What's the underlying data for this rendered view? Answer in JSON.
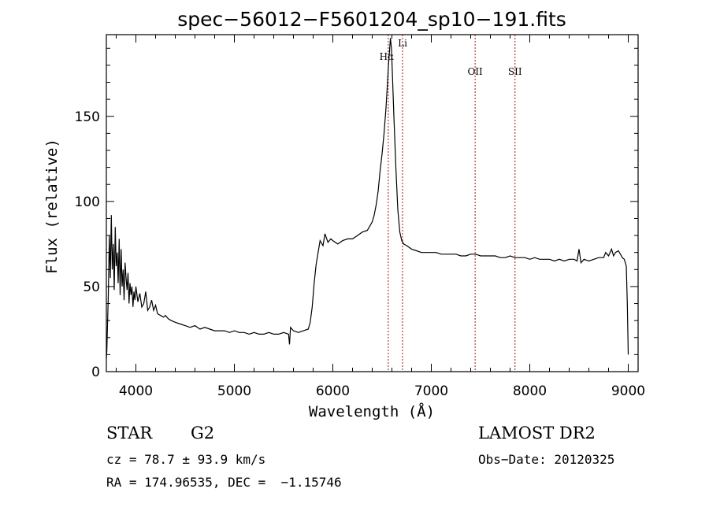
{
  "chart_data": {
    "type": "line",
    "title": "spec−56012−F5601204_sp10−191.fits",
    "xlabel": "Wavelength (Å)",
    "ylabel": "Flux (relative)",
    "xlim": [
      3700,
      9100
    ],
    "ylim": [
      0,
      198
    ],
    "x_ticks": [
      4000,
      5000,
      6000,
      7000,
      8000,
      9000
    ],
    "y_ticks": [
      0,
      50,
      100,
      150
    ],
    "grid": false,
    "series": [
      {
        "x": [
          3700,
          3705,
          3720,
          3730,
          3740,
          3750,
          3760,
          3770,
          3780,
          3790,
          3800,
          3810,
          3820,
          3830,
          3840,
          3850,
          3860,
          3870,
          3880,
          3890,
          3900,
          3910,
          3920,
          3930,
          3940,
          3950,
          3960,
          3970,
          3980,
          3990,
          4000,
          4020,
          4040,
          4060,
          4080,
          4100,
          4120,
          4140,
          4160,
          4180,
          4200,
          4220,
          4250,
          4280,
          4300,
          4330,
          4360,
          4400,
          4450,
          4500,
          4550,
          4600,
          4650,
          4700,
          4750,
          4800,
          4850,
          4900,
          4950,
          5000,
          5050,
          5100,
          5150,
          5200,
          5250,
          5300,
          5350,
          5400,
          5450,
          5500,
          5550,
          5560,
          5570,
          5600,
          5650,
          5700,
          5750,
          5770,
          5790,
          5810,
          5830,
          5850,
          5870,
          5900,
          5920,
          5950,
          5980,
          6000,
          6050,
          6100,
          6150,
          6200,
          6250,
          6300,
          6350,
          6400,
          6420,
          6440,
          6460,
          6480,
          6500,
          6520,
          6540,
          6555,
          6565,
          6575,
          6585,
          6595,
          6605,
          6620,
          6640,
          6660,
          6680,
          6700,
          6720,
          6750,
          6800,
          6850,
          6900,
          6950,
          7000,
          7050,
          7100,
          7150,
          7200,
          7250,
          7300,
          7350,
          7400,
          7450,
          7500,
          7550,
          7600,
          7650,
          7700,
          7750,
          7800,
          7850,
          7900,
          7950,
          8000,
          8050,
          8100,
          8150,
          8200,
          8250,
          8300,
          8350,
          8400,
          8450,
          8480,
          8500,
          8520,
          8550,
          8600,
          8650,
          8700,
          8750,
          8770,
          8800,
          8830,
          8850,
          8870,
          8900,
          8920,
          8940,
          8960,
          8980,
          8990,
          9000
        ],
        "y": [
          8,
          12,
          45,
          80,
          55,
          92,
          60,
          75,
          48,
          85,
          62,
          70,
          52,
          78,
          45,
          72,
          50,
          60,
          42,
          64,
          55,
          48,
          58,
          40,
          52,
          45,
          50,
          38,
          47,
          42,
          50,
          41,
          46,
          38,
          40,
          47,
          36,
          38,
          42,
          36,
          39,
          34,
          33,
          32,
          33,
          31,
          30,
          29,
          28,
          27,
          26,
          27,
          25,
          26,
          25,
          24,
          24,
          24,
          23,
          24,
          23,
          23,
          22,
          23,
          22,
          22,
          23,
          22,
          22,
          23,
          22,
          16,
          26,
          24,
          23,
          24,
          25,
          29,
          38,
          52,
          63,
          70,
          77,
          74,
          81,
          76,
          78,
          77,
          75,
          77,
          78,
          78,
          80,
          82,
          83,
          88,
          92,
          98,
          106,
          118,
          128,
          140,
          155,
          170,
          180,
          188,
          196,
          190,
          175,
          150,
          120,
          95,
          82,
          77,
          75,
          74,
          72,
          71,
          70,
          70,
          70,
          70,
          69,
          69,
          69,
          69,
          68,
          68,
          69,
          69,
          68,
          68,
          68,
          68,
          67,
          67,
          68,
          67,
          67,
          67,
          66,
          67,
          66,
          66,
          66,
          65,
          66,
          65,
          66,
          66,
          65,
          72,
          64,
          66,
          65,
          66,
          67,
          67,
          70,
          68,
          72,
          68,
          70,
          71,
          69,
          67,
          66,
          62,
          40,
          10
        ]
      }
    ],
    "lines": [
      {
        "label": "Hα",
        "x": 6563
      },
      {
        "label": "Li",
        "x": 6708
      },
      {
        "label": "OII",
        "x": 7445
      },
      {
        "label": "SII",
        "x": 7850
      }
    ]
  },
  "info": {
    "obj_class": "STAR",
    "subclass": "G2",
    "cz": "cz = 78.7 ± 93.9 km/s",
    "coords": "RA = 174.96535, DEC =  −1.15746",
    "survey": "LAMOST DR2",
    "obs_date": "Obs−Date: 20120325"
  },
  "colors": {
    "spectrum": "#000000",
    "line_marker": "#a01010",
    "axes": "#000000"
  }
}
